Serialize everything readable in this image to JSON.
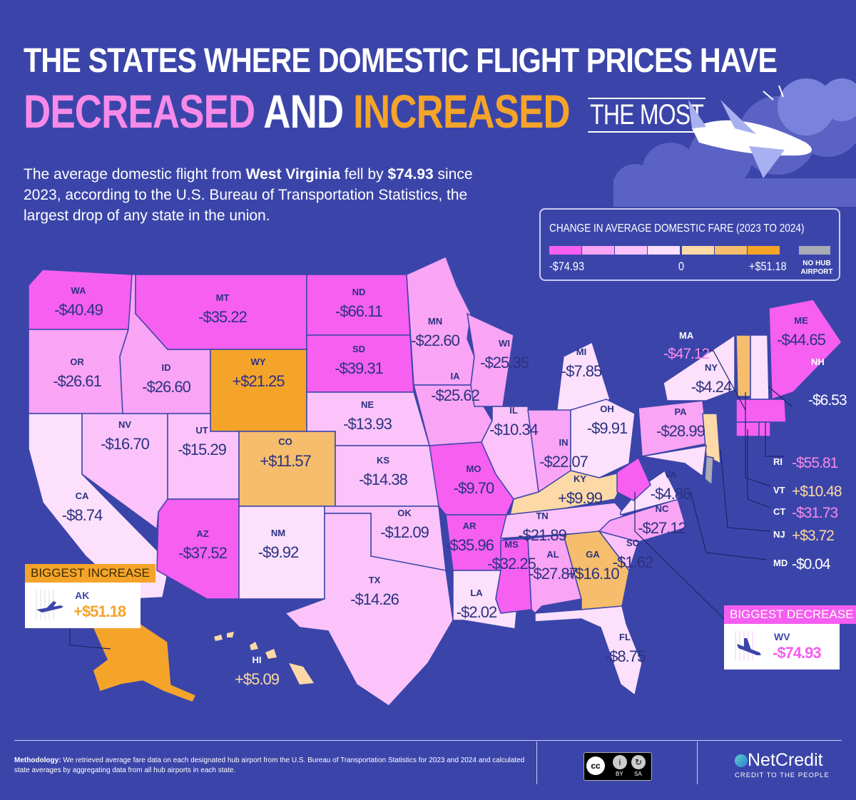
{
  "title": {
    "line1": "THE STATES WHERE DOMESTIC FLIGHT PRICES HAVE",
    "decreased": "DECREASED",
    "and": "AND",
    "increased": "INCREASED",
    "the_most": "THE MOST"
  },
  "intro": {
    "p1": "The average domestic flight from ",
    "state": "West Virginia",
    "p2": " fell by ",
    "amount": "$74.93",
    "p3": " since 2023, according to the U.S. Bureau of Transportation Statistics, the largest drop of any state in the union."
  },
  "legend": {
    "title": "CHANGE IN AVERAGE DOMESTIC FARE (2023 TO 2024)",
    "min_label": "-$74.93",
    "zero_label": "0",
    "max_label": "+$51.18",
    "no_hub_label": "NO HUB AIRPORT",
    "colors": [
      "#f65ff0",
      "#f9a4f4",
      "#fbc3f9",
      "#fde0fb",
      "#fcd9a6",
      "#f5bd6c",
      "#f5a42a"
    ],
    "no_hub_color": "#a9abb6"
  },
  "states": [
    {
      "code": "WA",
      "value": "-$40.49",
      "color": "#f65ff0"
    },
    {
      "code": "OR",
      "value": "-$26.61",
      "color": "#f9a4f4"
    },
    {
      "code": "CA",
      "value": "-$8.74",
      "color": "#fde0fb"
    },
    {
      "code": "NV",
      "value": "-$16.70",
      "color": "#fbc3f9"
    },
    {
      "code": "ID",
      "value": "-$26.60",
      "color": "#f9a4f4"
    },
    {
      "code": "MT",
      "value": "-$35.22",
      "color": "#f65ff0"
    },
    {
      "code": "WY",
      "value": "+$21.25",
      "color": "#f5a42a"
    },
    {
      "code": "UT",
      "value": "-$15.29",
      "color": "#fbc3f9"
    },
    {
      "code": "CO",
      "value": "+$11.57",
      "color": "#f5bd6c"
    },
    {
      "code": "AZ",
      "value": "-$37.52",
      "color": "#f65ff0"
    },
    {
      "code": "NM",
      "value": "-$9.92",
      "color": "#fde0fb"
    },
    {
      "code": "ND",
      "value": "-$66.11",
      "color": "#f65ff0"
    },
    {
      "code": "SD",
      "value": "-$39.31",
      "color": "#f65ff0"
    },
    {
      "code": "NE",
      "value": "-$13.93",
      "color": "#fbc3f9"
    },
    {
      "code": "KS",
      "value": "-$14.38",
      "color": "#fbc3f9"
    },
    {
      "code": "OK",
      "value": "-$12.09",
      "color": "#fbc3f9"
    },
    {
      "code": "TX",
      "value": "-$14.26",
      "color": "#fbc3f9"
    },
    {
      "code": "MN",
      "value": "-$22.60",
      "color": "#f9a4f4"
    },
    {
      "code": "IA",
      "value": "-$25.62",
      "color": "#f9a4f4"
    },
    {
      "code": "MO",
      "value": "-$9.70",
      "color": "#f65ff0"
    },
    {
      "code": "AR",
      "value": "-$35.96",
      "color": "#f65ff0"
    },
    {
      "code": "LA",
      "value": "-$2.02",
      "color": "#fde0fb"
    },
    {
      "code": "WI",
      "value": "-$25.35",
      "color": "#f9a4f4"
    },
    {
      "code": "IL",
      "value": "-$10.34",
      "color": "#fbc3f9"
    },
    {
      "code": "MI",
      "value": "-$7.85",
      "color": "#fde0fb"
    },
    {
      "code": "IN",
      "value": "-$22.07",
      "color": "#f9a4f4"
    },
    {
      "code": "OH",
      "value": "-$9.91",
      "color": "#fde0fb"
    },
    {
      "code": "KY",
      "value": "+$9.99",
      "color": "#fcd9a6"
    },
    {
      "code": "TN",
      "value": "-$21.89",
      "color": "#fbc3f9"
    },
    {
      "code": "MS",
      "value": "-$32.25",
      "color": "#f65ff0"
    },
    {
      "code": "AL",
      "value": "-$27.87",
      "color": "#f9a4f4"
    },
    {
      "code": "GA",
      "value": "+$16.10",
      "color": "#f5bd6c"
    },
    {
      "code": "FL",
      "value": "-$8.75",
      "color": "#fde0fb"
    },
    {
      "code": "SC",
      "value": "-$1.62",
      "color": "#fbc3f9"
    },
    {
      "code": "NC",
      "value": "-$27.12",
      "color": "#f9a4f4"
    },
    {
      "code": "VA",
      "value": "-$4.86",
      "color": "#fde0fb"
    },
    {
      "code": "WV",
      "value": "-$74.93",
      "color": "#f65ff0"
    },
    {
      "code": "PA",
      "value": "-$28.99",
      "color": "#f9a4f4"
    },
    {
      "code": "NY",
      "value": "-$4.24",
      "color": "#fde0fb"
    },
    {
      "code": "NJ",
      "value": "+$3.72",
      "color": "#fcd9a6"
    },
    {
      "code": "MD",
      "value": "-$0.04",
      "color": "#fde0fb"
    },
    {
      "code": "DE",
      "value": "",
      "color": "#a9abb6"
    },
    {
      "code": "ME",
      "value": "-$44.65",
      "color": "#f65ff0"
    },
    {
      "code": "NH",
      "value": "-$6.53",
      "color": "#fde0fb"
    },
    {
      "code": "VT",
      "value": "+$10.48",
      "color": "#f5bd6c"
    },
    {
      "code": "MA",
      "value": "-$47.12",
      "color": "#f65ff0"
    },
    {
      "code": "CT",
      "value": "-$31.73",
      "color": "#f65ff0"
    },
    {
      "code": "RI",
      "value": "-$55.81",
      "color": "#f65ff0"
    },
    {
      "code": "AK",
      "value": "+$51.18",
      "color": "#f5a42a"
    },
    {
      "code": "HI",
      "value": "+$5.09",
      "color": "#fcd9a6"
    }
  ],
  "biggest_increase": {
    "heading": "BIGGEST INCREASE",
    "state": "AK",
    "value": "+$51.18",
    "icon": "airplane-icon"
  },
  "biggest_decrease": {
    "heading": "BIGGEST DECREASE",
    "state": "WV",
    "value": "-$74.93",
    "icon": "airplane-landing-icon"
  },
  "footer": {
    "methodology_label": "Methodology:",
    "methodology_text": " We retrieved average fare data on each designated hub airport from the U.S. Bureau of Transportation Statistics for 2023 and 2024 and calculated state averages by aggregating data from all hub airports in each state.",
    "license": "CC BY SA",
    "license_by": "BY",
    "license_sa": "SA",
    "brand": "NetCredit",
    "tagline": "CREDIT TO THE PEOPLE"
  }
}
